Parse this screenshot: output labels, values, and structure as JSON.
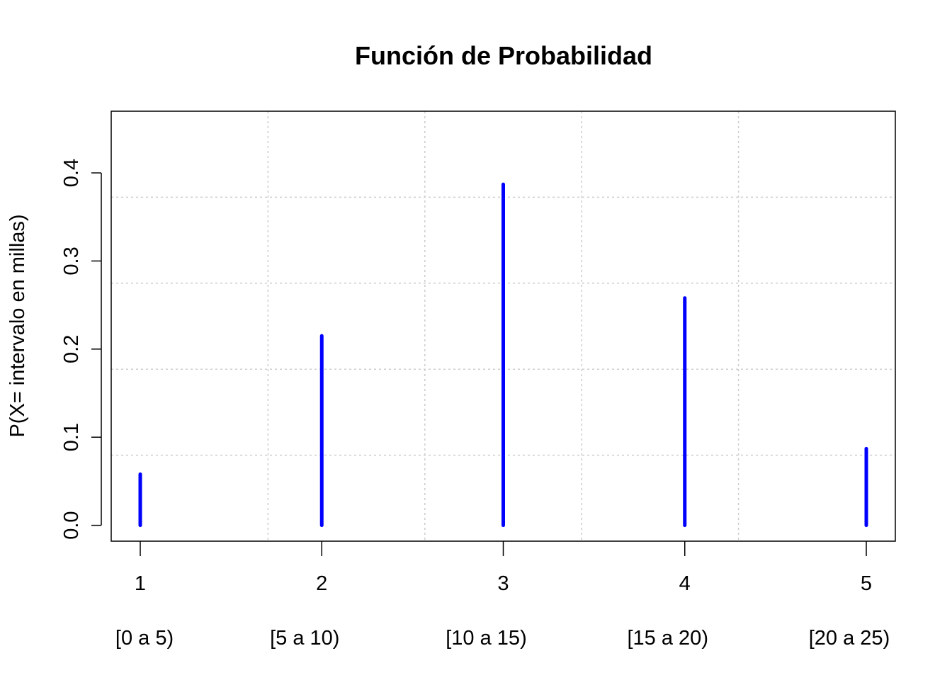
{
  "chart_data": {
    "type": "bar",
    "style": "probability-mass spikes",
    "title": "Función de Probabilidad",
    "xlabel": "",
    "ylabel": "P(X= intervalo en millas)",
    "x": [
      1,
      2,
      3,
      4,
      5
    ],
    "x_tick_labels": [
      "1",
      "2",
      "3",
      "4",
      "5"
    ],
    "categories": [
      "[0 a 5)",
      "[5 a 10)",
      "[10 a 15)",
      "[15 a 20)",
      "[20 a 25)"
    ],
    "values": [
      0.058,
      0.215,
      0.387,
      0.258,
      0.087
    ],
    "xlim": [
      0.84,
      5.16
    ],
    "ylim": [
      -0.018,
      0.47
    ],
    "y_ticks": [
      0.0,
      0.1,
      0.2,
      0.3,
      0.4
    ],
    "y_tick_labels": [
      "0.0",
      "0.1",
      "0.2",
      "0.3",
      "0.4"
    ],
    "grid": true,
    "grid_style": "dotted light gray",
    "line_color": "#0000ff",
    "grid_color": "#cccccc",
    "axis_color": "#000000"
  }
}
